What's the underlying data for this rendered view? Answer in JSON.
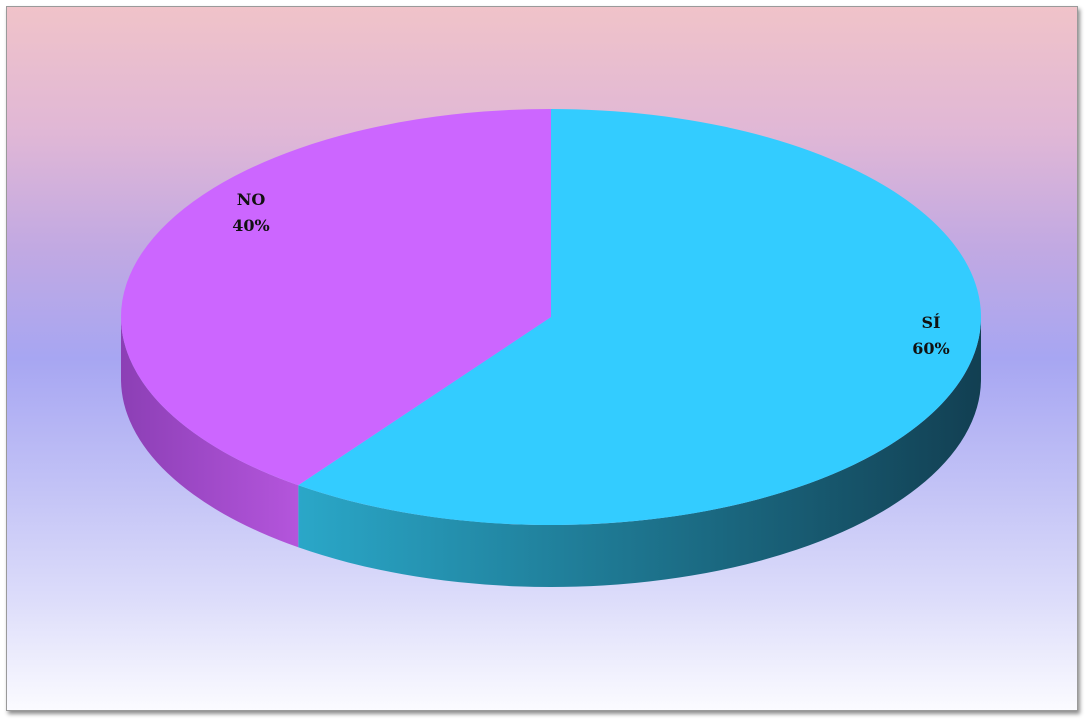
{
  "chart_data": {
    "type": "pie",
    "style": "3d",
    "title": "",
    "categories": [
      "NO",
      "SÍ"
    ],
    "values": [
      40,
      60
    ],
    "colors": [
      "#cc66ff",
      "#33ccff"
    ],
    "side_colors": [
      "#a24bc8",
      "#1f8fb0"
    ],
    "labels": [
      {
        "category": "NO",
        "percent": "40%"
      },
      {
        "category": "SÍ",
        "percent": "60%"
      }
    ],
    "legend": "none"
  }
}
